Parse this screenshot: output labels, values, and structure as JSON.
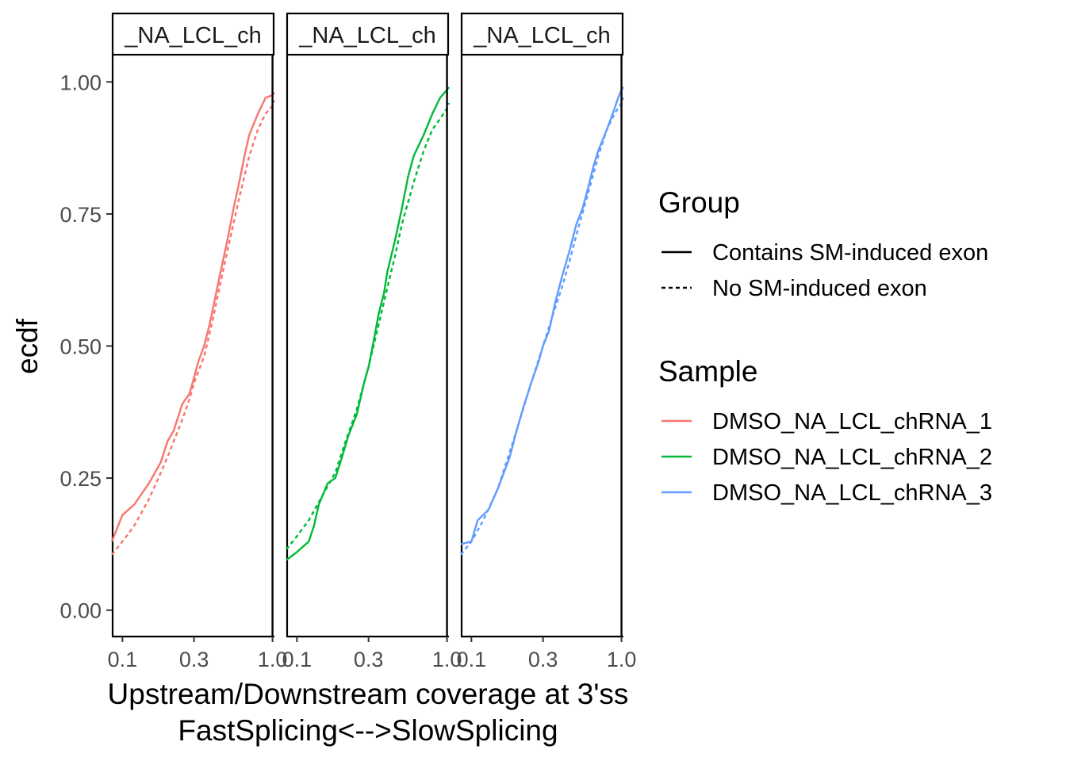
{
  "chart_data": {
    "type": "line",
    "y_label": "ecdf",
    "x_label_line1": "Upstream/Downstream coverage at 3'ss",
    "x_label_line2": "FastSplicing<-->SlowSplicing",
    "x_scale": "log10",
    "x_range": [
      0.085,
      1.03
    ],
    "y_range": [
      -0.05,
      1.05
    ],
    "x_ticks": [
      {
        "value": 0.1,
        "label": "0.1"
      },
      {
        "value": 0.3,
        "label": "0.3"
      },
      {
        "value": 1.0,
        "label": "1.0"
      }
    ],
    "y_ticks": [
      {
        "value": 0.0,
        "label": "0.00"
      },
      {
        "value": 0.25,
        "label": "0.25"
      },
      {
        "value": 0.5,
        "label": "0.50"
      },
      {
        "value": 0.75,
        "label": "0.75"
      },
      {
        "value": 1.0,
        "label": "1.00"
      }
    ],
    "grid": false,
    "legend_placement": "right",
    "legends": [
      {
        "title": "Group",
        "kind": "linetype",
        "items": [
          {
            "label": "Contains SM-induced exon",
            "linetype": "solid"
          },
          {
            "label": "No SM-induced exon",
            "linetype": "dashed"
          }
        ]
      },
      {
        "title": "Sample",
        "kind": "color",
        "items": [
          {
            "label": "DMSO_NA_LCL_chRNA_1",
            "color": "#F8766D"
          },
          {
            "label": "DMSO_NA_LCL_chRNA_2",
            "color": "#00BA38"
          },
          {
            "label": "DMSO_NA_LCL_chRNA_3",
            "color": "#619CFF"
          }
        ]
      }
    ],
    "facets": [
      {
        "strip": "_NA_LCL_ch",
        "sample": "DMSO_NA_LCL_chRNA_1",
        "color": "#F8766D",
        "series": [
          {
            "group": "Contains SM-induced exon",
            "linetype": "solid",
            "x": [
              0.085,
              0.1,
              0.12,
              0.15,
              0.18,
              0.2,
              0.22,
              0.25,
              0.28,
              0.3,
              0.32,
              0.35,
              0.38,
              0.4,
              0.45,
              0.5,
              0.55,
              0.6,
              0.65,
              0.7,
              0.8,
              0.9,
              1.0,
              1.03
            ],
            "y": [
              0.13,
              0.18,
              0.2,
              0.24,
              0.28,
              0.32,
              0.34,
              0.39,
              0.41,
              0.44,
              0.47,
              0.5,
              0.54,
              0.57,
              0.64,
              0.7,
              0.76,
              0.81,
              0.86,
              0.9,
              0.94,
              0.97,
              0.975,
              0.98
            ]
          },
          {
            "group": "No SM-induced exon",
            "linetype": "dashed",
            "x": [
              0.085,
              0.1,
              0.12,
              0.15,
              0.18,
              0.2,
              0.22,
              0.25,
              0.28,
              0.3,
              0.35,
              0.4,
              0.45,
              0.5,
              0.6,
              0.7,
              0.8,
              0.9,
              1.0,
              1.03
            ],
            "y": [
              0.105,
              0.13,
              0.16,
              0.21,
              0.26,
              0.29,
              0.32,
              0.36,
              0.4,
              0.43,
              0.48,
              0.55,
              0.62,
              0.68,
              0.78,
              0.86,
              0.91,
              0.94,
              0.955,
              0.965
            ]
          }
        ]
      },
      {
        "strip": "_NA_LCL_ch",
        "sample": "DMSO_NA_LCL_chRNA_2",
        "color": "#00BA38",
        "series": [
          {
            "group": "Contains SM-induced exon",
            "linetype": "solid",
            "x": [
              0.085,
              0.09,
              0.1,
              0.12,
              0.13,
              0.14,
              0.16,
              0.18,
              0.2,
              0.22,
              0.25,
              0.28,
              0.3,
              0.32,
              0.35,
              0.38,
              0.4,
              0.45,
              0.5,
              0.55,
              0.6,
              0.7,
              0.8,
              0.9,
              1.0,
              1.03
            ],
            "y": [
              0.095,
              0.1,
              0.11,
              0.13,
              0.16,
              0.2,
              0.24,
              0.25,
              0.29,
              0.33,
              0.37,
              0.43,
              0.46,
              0.5,
              0.56,
              0.6,
              0.64,
              0.7,
              0.76,
              0.82,
              0.86,
              0.9,
              0.94,
              0.97,
              0.985,
              0.99
            ]
          },
          {
            "group": "No SM-induced exon",
            "linetype": "dashed",
            "x": [
              0.085,
              0.1,
              0.12,
              0.15,
              0.18,
              0.2,
              0.25,
              0.3,
              0.35,
              0.4,
              0.45,
              0.5,
              0.6,
              0.7,
              0.8,
              0.9,
              1.0,
              1.03
            ],
            "y": [
              0.115,
              0.14,
              0.17,
              0.22,
              0.26,
              0.3,
              0.38,
              0.46,
              0.54,
              0.61,
              0.67,
              0.73,
              0.81,
              0.87,
              0.91,
              0.93,
              0.95,
              0.96
            ]
          }
        ]
      },
      {
        "strip": "_NA_LCL_ch",
        "sample": "DMSO_NA_LCL_chRNA_3",
        "color": "#619CFF",
        "series": [
          {
            "group": "Contains SM-induced exon",
            "linetype": "solid",
            "x": [
              0.085,
              0.1,
              0.11,
              0.13,
              0.15,
              0.18,
              0.2,
              0.22,
              0.25,
              0.28,
              0.3,
              0.33,
              0.36,
              0.4,
              0.45,
              0.5,
              0.55,
              0.6,
              0.65,
              0.7,
              0.8,
              0.9,
              0.95,
              1.0,
              1.03
            ],
            "y": [
              0.125,
              0.13,
              0.17,
              0.19,
              0.23,
              0.29,
              0.34,
              0.38,
              0.43,
              0.47,
              0.5,
              0.53,
              0.58,
              0.63,
              0.68,
              0.73,
              0.76,
              0.8,
              0.84,
              0.87,
              0.91,
              0.95,
              0.97,
              0.985,
              0.99
            ]
          },
          {
            "group": "No SM-induced exon",
            "linetype": "dashed",
            "x": [
              0.085,
              0.1,
              0.12,
              0.15,
              0.2,
              0.25,
              0.3,
              0.35,
              0.4,
              0.45,
              0.5,
              0.6,
              0.7,
              0.8,
              0.9,
              1.0,
              1.03
            ],
            "y": [
              0.105,
              0.13,
              0.17,
              0.23,
              0.34,
              0.43,
              0.5,
              0.56,
              0.61,
              0.66,
              0.71,
              0.79,
              0.86,
              0.91,
              0.94,
              0.96,
              0.97
            ]
          }
        ]
      }
    ]
  }
}
